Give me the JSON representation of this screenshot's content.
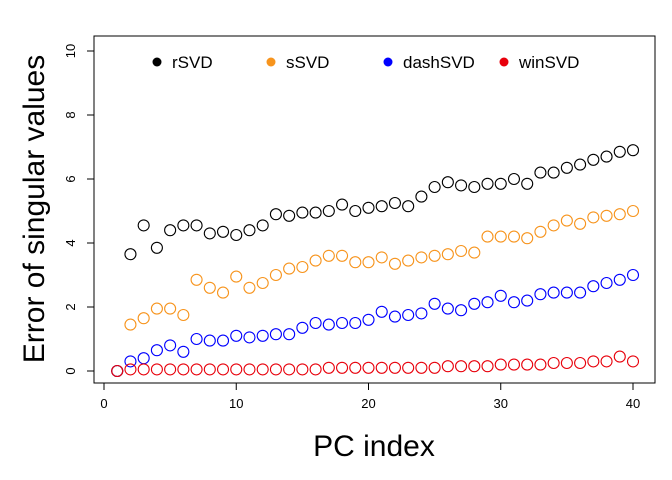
{
  "chart_data": {
    "type": "scatter",
    "xlabel": "PC index",
    "ylabel": "Error of singular values",
    "xlim": [
      0,
      41
    ],
    "ylim": [
      0,
      10
    ],
    "x_ticks": [
      "0",
      "10",
      "20",
      "30",
      "40"
    ],
    "y_ticks": [
      "0",
      "2",
      "4",
      "6",
      "8",
      "10"
    ],
    "legend_position": "top",
    "x": [
      1,
      2,
      3,
      4,
      5,
      6,
      7,
      8,
      9,
      10,
      11,
      12,
      13,
      14,
      15,
      16,
      17,
      18,
      19,
      20,
      21,
      22,
      23,
      24,
      25,
      26,
      27,
      28,
      29,
      30,
      31,
      32,
      33,
      34,
      35,
      36,
      37,
      38,
      39,
      40
    ],
    "series": [
      {
        "name": "rSVD",
        "color": "#000000",
        "values": [
          0.0,
          3.65,
          4.55,
          3.85,
          4.4,
          4.55,
          4.55,
          4.3,
          4.35,
          4.25,
          4.4,
          4.55,
          4.9,
          4.85,
          4.95,
          4.95,
          5.0,
          5.2,
          5.0,
          5.1,
          5.15,
          5.25,
          5.15,
          5.45,
          5.75,
          5.9,
          5.8,
          5.75,
          5.85,
          5.85,
          6.0,
          5.85,
          6.2,
          6.2,
          6.35,
          6.45,
          6.6,
          6.7,
          6.85,
          6.9
        ]
      },
      {
        "name": "sSVD",
        "color": "#F7941D",
        "values": [
          0.0,
          1.45,
          1.65,
          1.95,
          1.95,
          1.75,
          2.85,
          2.6,
          2.45,
          2.95,
          2.6,
          2.75,
          3.0,
          3.2,
          3.25,
          3.45,
          3.6,
          3.6,
          3.4,
          3.4,
          3.55,
          3.35,
          3.45,
          3.55,
          3.6,
          3.65,
          3.75,
          3.7,
          4.2,
          4.2,
          4.2,
          4.15,
          4.35,
          4.55,
          4.7,
          4.6,
          4.8,
          4.85,
          4.9,
          5.0
        ]
      },
      {
        "name": "dashSVD",
        "color": "#0000FF",
        "values": [
          0.0,
          0.3,
          0.4,
          0.65,
          0.8,
          0.6,
          1.0,
          0.95,
          0.95,
          1.1,
          1.05,
          1.1,
          1.15,
          1.15,
          1.35,
          1.5,
          1.45,
          1.5,
          1.5,
          1.6,
          1.85,
          1.7,
          1.75,
          1.8,
          2.1,
          1.95,
          1.9,
          2.1,
          2.15,
          2.35,
          2.15,
          2.2,
          2.4,
          2.45,
          2.45,
          2.45,
          2.65,
          2.75,
          2.85,
          3.0
        ]
      },
      {
        "name": "winSVD",
        "color": "#E8000B",
        "values": [
          0.0,
          0.05,
          0.05,
          0.05,
          0.05,
          0.05,
          0.05,
          0.05,
          0.05,
          0.05,
          0.05,
          0.05,
          0.05,
          0.05,
          0.05,
          0.05,
          0.1,
          0.1,
          0.1,
          0.1,
          0.1,
          0.1,
          0.1,
          0.1,
          0.1,
          0.15,
          0.15,
          0.15,
          0.15,
          0.2,
          0.2,
          0.2,
          0.2,
          0.25,
          0.25,
          0.25,
          0.3,
          0.3,
          0.45,
          0.3
        ]
      }
    ]
  }
}
